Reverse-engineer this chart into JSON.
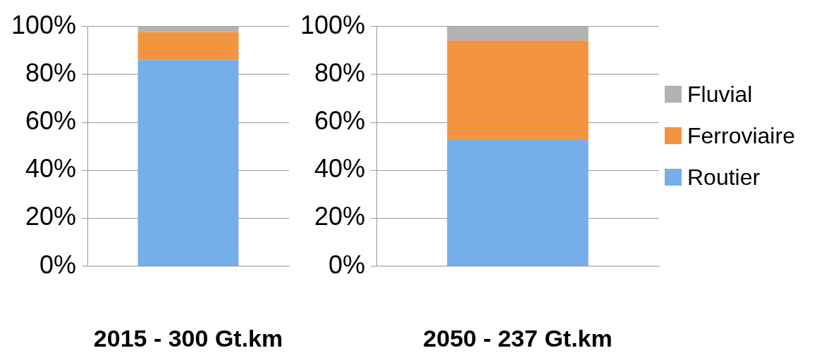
{
  "chart_data": [
    {
      "type": "bar",
      "stacked": true,
      "categories": [
        null
      ],
      "xlabel": "2015 - 300 Gt.km",
      "ylim": [
        0,
        100
      ],
      "yticks": [
        {
          "value": 0,
          "label": "0%"
        },
        {
          "value": 20,
          "label": "20%"
        },
        {
          "value": 40,
          "label": "40%"
        },
        {
          "value": 60,
          "label": "60%"
        },
        {
          "value": 80,
          "label": "80%"
        },
        {
          "value": 100,
          "label": "100%"
        }
      ],
      "grid": "y",
      "legend": false,
      "series": [
        {
          "color": "#76aee9",
          "values": [
            86
          ]
        },
        {
          "color": "#f39441",
          "values": [
            11.7
          ]
        },
        {
          "color": "#b2b2b2",
          "values": [
            2.3
          ]
        }
      ]
    },
    {
      "type": "bar",
      "stacked": true,
      "categories": [
        null
      ],
      "xlabel": "2050 - 237 Gt.km",
      "ylim": [
        0,
        100
      ],
      "yticks": [
        {
          "value": 0,
          "label": "0%"
        },
        {
          "value": 20,
          "label": "20%"
        },
        {
          "value": 40,
          "label": "40%"
        },
        {
          "value": 60,
          "label": "60%"
        },
        {
          "value": 80,
          "label": "80%"
        },
        {
          "value": 100,
          "label": "100%"
        }
      ],
      "grid": "y",
      "legend": "right",
      "series": [
        {
          "name": "Routier",
          "color": "#76aee9",
          "values": [
            52.7
          ]
        },
        {
          "name": "Ferroviaire",
          "color": "#f39441",
          "values": [
            41.4
          ]
        },
        {
          "name": "Fluvial",
          "color": "#b2b2b2",
          "values": [
            5.9
          ]
        }
      ]
    }
  ]
}
